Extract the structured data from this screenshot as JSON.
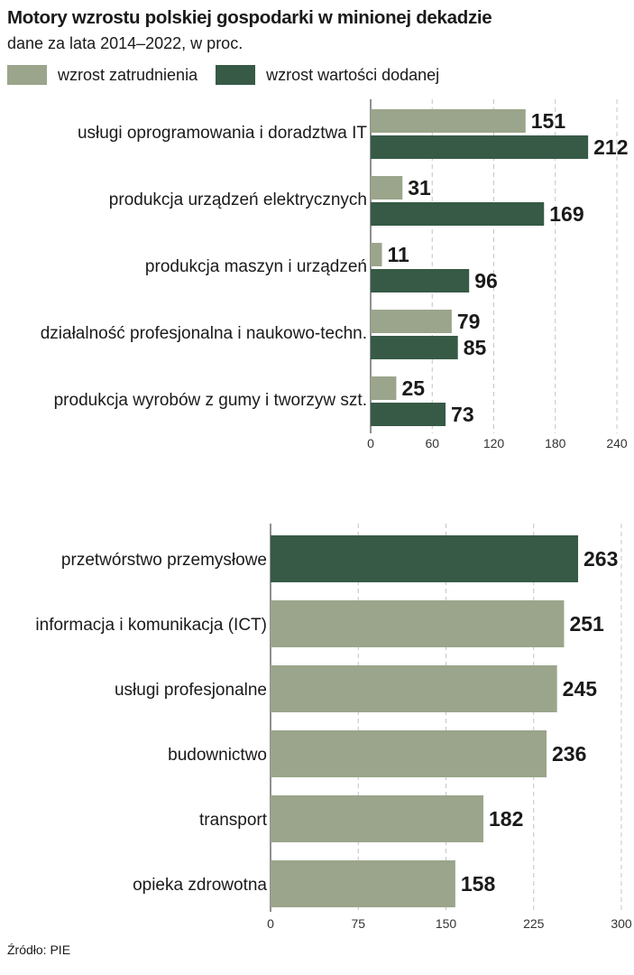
{
  "header": {
    "title": "Motory wzrostu polskiej gospodarki w minionej dekadzie",
    "subtitle": "dane za lata 2014–2022, w proc."
  },
  "legend": [
    {
      "label": "wzrost zatrudnienia",
      "color": "#9aa58b"
    },
    {
      "label": "wzrost wartości dodanej",
      "color": "#365a46"
    }
  ],
  "source": "Źródło: PIE",
  "chart_data": [
    {
      "type": "bar",
      "orientation": "horizontal",
      "title": "",
      "categories": [
        "usługi oprogramowania i doradztwa IT",
        "produkcja urządzeń elektrycznych",
        "produkcja maszyn i urządzeń",
        "działalność profesjonalna i naukowo-techn.",
        "produkcja wyrobów z gumy i tworzyw szt."
      ],
      "series": [
        {
          "name": "wzrost zatrudnienia",
          "color": "#9aa58b",
          "values": [
            151,
            31,
            11,
            79,
            25
          ]
        },
        {
          "name": "wzrost wartości dodanej",
          "color": "#365a46",
          "values": [
            212,
            169,
            96,
            85,
            73
          ]
        }
      ],
      "xlim": [
        0,
        240
      ],
      "xticks": [
        0,
        60,
        120,
        180,
        240
      ],
      "grid": "vertical dashed",
      "legend": "top-left"
    },
    {
      "type": "bar",
      "orientation": "horizontal",
      "title": "",
      "categories": [
        "przetwórstwo przemysłowe",
        "informacja i komunikacja (ICT)",
        "usługi profesjonalne",
        "budownictwo",
        "transport",
        "opieka zdrowotna"
      ],
      "values": [
        263,
        251,
        245,
        236,
        182,
        158
      ],
      "colors": [
        "#365a46",
        "#9aa58b",
        "#9aa58b",
        "#9aa58b",
        "#9aa58b",
        "#9aa58b"
      ],
      "xlim": [
        0,
        300
      ],
      "xticks": [
        0,
        75,
        150,
        225,
        300
      ],
      "grid": "vertical dashed"
    }
  ]
}
